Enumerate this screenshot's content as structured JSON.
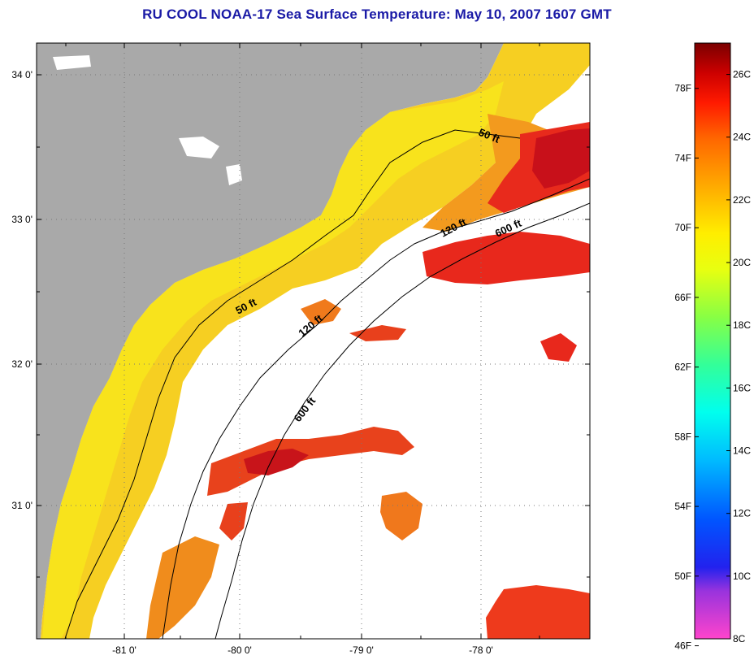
{
  "title": "RU COOL  NOAA-17  Sea Surface Temperature:  May 10, 2007 1607 GMT",
  "lat_labels": [
    "34 0'",
    "33 0'",
    "32 0'",
    "31 0'"
  ],
  "lon_labels": [
    "-81 0'",
    "-80 0'",
    "-79 0'",
    "-78 0'"
  ],
  "contour_labels": [
    "50 ft",
    "120 ft",
    "600 ft",
    "50 ft",
    "120 ft",
    "600 ft"
  ],
  "colorbar": {
    "fahrenheit_labels": [
      "78F",
      "74F",
      "70F",
      "66F",
      "62F",
      "58F",
      "54F",
      "50F",
      "46F"
    ],
    "celsius_labels": [
      "26C",
      "24C",
      "22C",
      "20C",
      "18C",
      "16C",
      "14C",
      "12C",
      "10C",
      "8C"
    ],
    "range_c": [
      8,
      27
    ]
  },
  "colors": {
    "land": "#a9a9a9",
    "cloud": "#ffffff",
    "coastal_warm": "#f7d21c",
    "mid_shelf": "#f3a21c",
    "gulf_stream": "#e8281c",
    "gulf_stream_core": "#c8101a"
  }
}
